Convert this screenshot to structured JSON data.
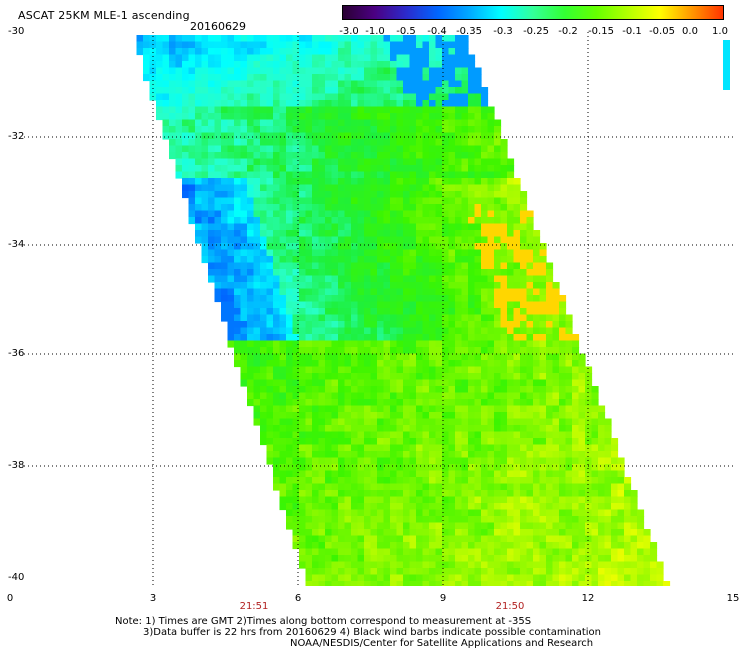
{
  "header": {
    "title": "ASCAT 25KM MLE-1 ascending",
    "date": "20160629"
  },
  "colorbar": {
    "tick_labels": [
      "-3.0",
      "-1.0",
      "-0.5",
      "-0.4",
      "-0.35",
      "-0.3",
      "-0.25",
      "-0.2",
      "-0.15",
      "-0.1",
      "-0.05",
      "0.0",
      "1.0"
    ],
    "colors": [
      "#2a0033",
      "#4b0082",
      "#2b2bcc",
      "#0066ff",
      "#00aaff",
      "#00ffff",
      "#33ff99",
      "#33ff33",
      "#66ff00",
      "#b3ff00",
      "#ffff00",
      "#ff9900",
      "#ff3300"
    ]
  },
  "axes": {
    "x_ticks": [
      "0",
      "3",
      "6",
      "9",
      "12",
      "15"
    ],
    "y_ticks": [
      "-30",
      "-32",
      "-34",
      "-36",
      "-38",
      "-40"
    ],
    "times": [
      "21:51",
      "21:50"
    ]
  },
  "notes": {
    "line1": "Note: 1) Times are GMT 2)Times along bottom correspond to measurement at -35S",
    "line2": "3)Data buffer is 22 hrs from 20160629 4) Black wind barbs indicate possible contamination",
    "line3": "NOAA/NESDIS/Center for Satellite Applications and Research"
  }
}
